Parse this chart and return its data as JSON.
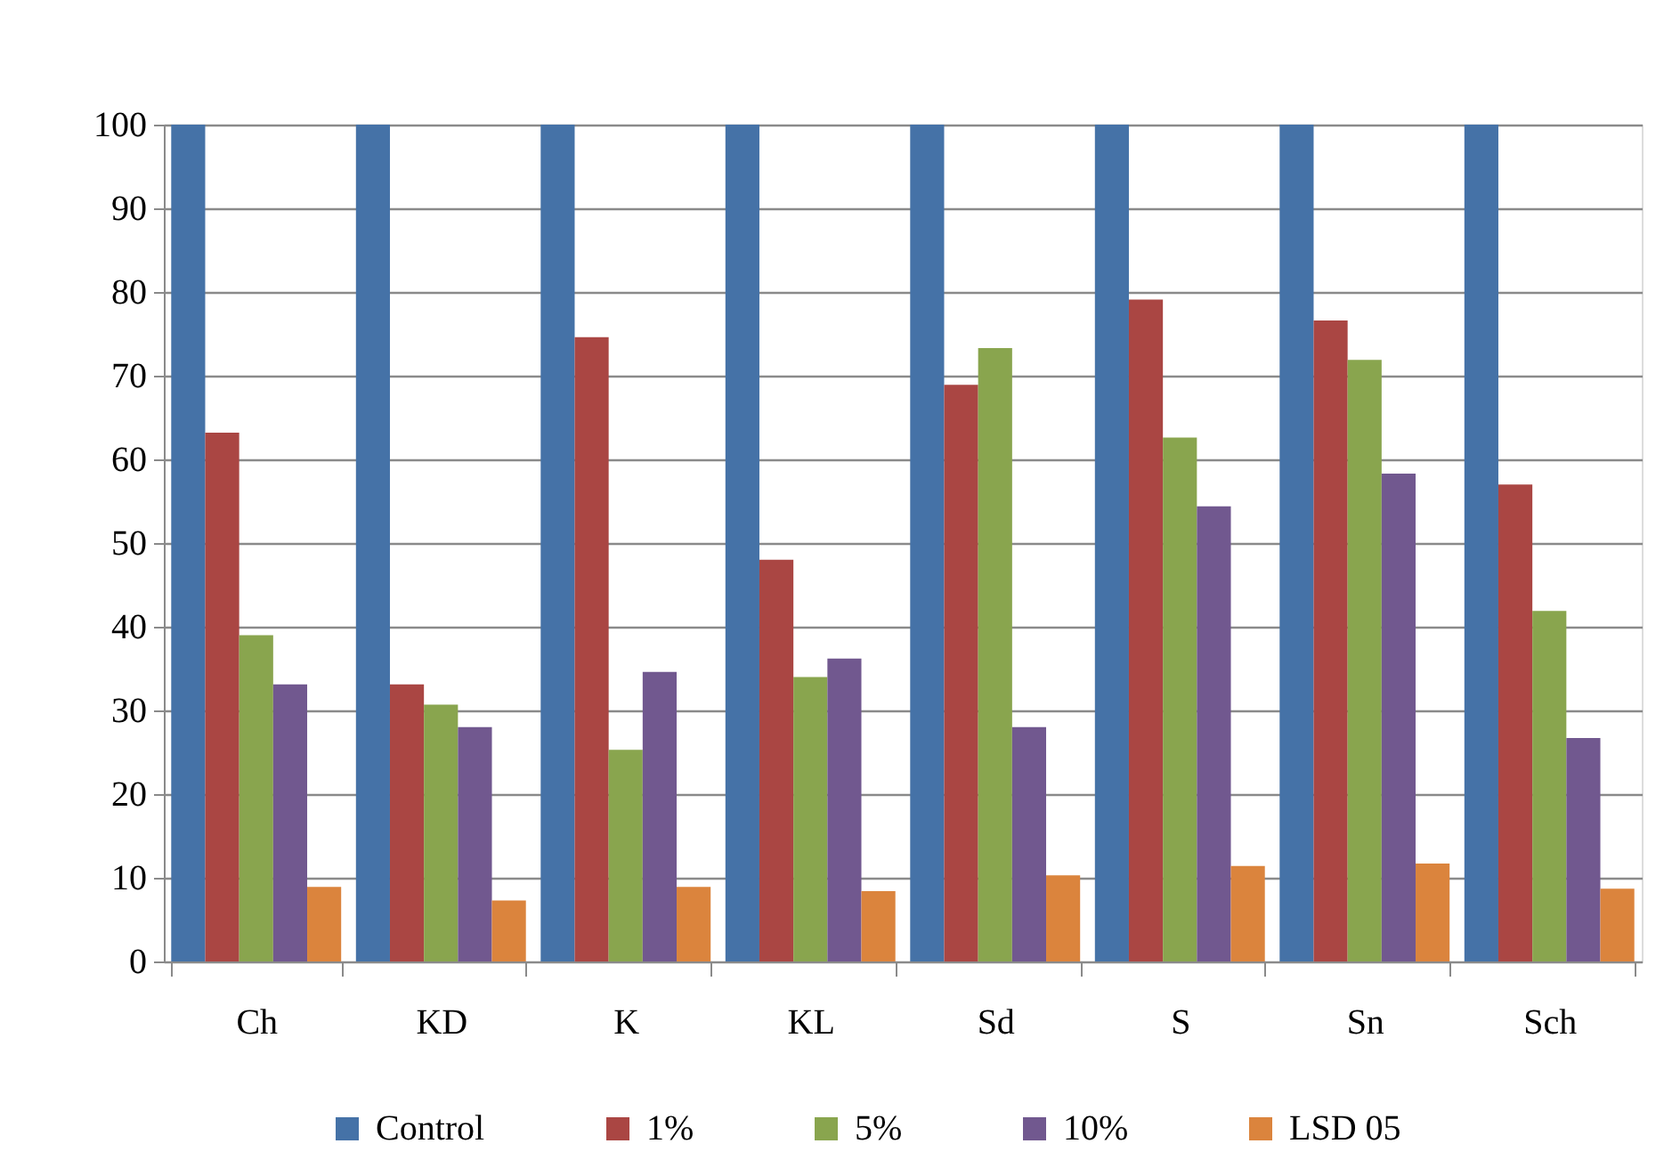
{
  "chart_data": {
    "type": "bar",
    "categories": [
      "Ch",
      "KD",
      "K",
      "KL",
      "Sd",
      "S",
      "Sn",
      "Sch"
    ],
    "series": [
      {
        "name": "Control",
        "color": "#4572a7",
        "values": [
          100,
          100,
          100,
          100,
          100,
          100,
          100,
          100
        ]
      },
      {
        "name": "1%",
        "color": "#aa4643",
        "values": [
          63.2,
          33.1,
          74.6,
          48.0,
          68.9,
          79.1,
          76.6,
          57.0
        ]
      },
      {
        "name": "5%",
        "color": "#89a54e",
        "values": [
          39.0,
          30.7,
          25.3,
          34.0,
          73.3,
          62.6,
          71.9,
          41.9
        ]
      },
      {
        "name": "10%",
        "color": "#71588f",
        "values": [
          33.1,
          28.0,
          34.6,
          36.2,
          28.0,
          54.4,
          58.3,
          26.7
        ]
      },
      {
        "name": "LSD 05",
        "color": "#db843d",
        "values": [
          8.9,
          7.3,
          8.9,
          8.4,
          10.3,
          11.4,
          11.7,
          8.7
        ]
      }
    ],
    "ylim": [
      0,
      100
    ],
    "yticks": [
      0,
      10,
      20,
      30,
      40,
      50,
      60,
      70,
      80,
      90,
      100
    ],
    "grid": "y",
    "legend": "bottom"
  }
}
